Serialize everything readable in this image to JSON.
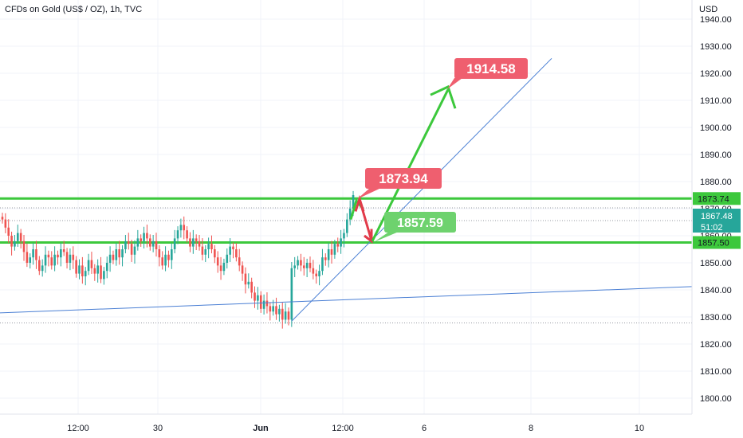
{
  "header": {
    "title": "CFDs on Gold (US$ / OZ), 1h, TVC"
  },
  "chart_data": {
    "type": "candlestick",
    "currency_label": "USD",
    "ylim": [
      1793,
      1942
    ],
    "y_ticks": [
      1800,
      1810,
      1820,
      1830,
      1840,
      1850,
      1860,
      1870,
      1880,
      1890,
      1900,
      1910,
      1920,
      1930,
      1940
    ],
    "y_tick_labels": [
      "1800.00",
      "1810.00",
      "1820.00",
      "1830.00",
      "1840.00",
      "1850.00",
      "1860.00",
      "1870.00",
      "1880.00",
      "1890.00",
      "1900.00",
      "1910.00",
      "1920.00",
      "1930.00",
      "1940.00"
    ],
    "x_tick_labels": [
      "12:00",
      "30",
      "Jun",
      "12:00",
      "6",
      "8",
      "10"
    ],
    "horizontal_levels": [
      {
        "price": 1873.74,
        "label": "1873.74",
        "color": "#3cc83c"
      },
      {
        "price": 1857.5,
        "label": "1857.50",
        "color": "#3cc83c"
      }
    ],
    "dotted_levels": [
      1870.3,
      1865.6,
      1827.8
    ],
    "current_price": {
      "label": "1867.48",
      "countdown": "51:02",
      "color": "#26a69a"
    },
    "annotations": [
      {
        "text": "1914.58",
        "color": "#ef5f6f"
      },
      {
        "text": "1873.94",
        "color": "#ef5f6f"
      },
      {
        "text": "1857.59",
        "color": "#6ed26e"
      }
    ],
    "colors": {
      "up": "#26a69a",
      "down": "#ef5350",
      "trend": "#4a7fd4",
      "arrow_up": "#3cc83c",
      "arrow_down": "#e23b4a"
    },
    "candles_close": [
      1866,
      1863,
      1860,
      1856,
      1858,
      1861,
      1858,
      1854,
      1850,
      1852,
      1855,
      1851,
      1847,
      1849,
      1853,
      1852,
      1849,
      1853,
      1852,
      1855,
      1854,
      1850,
      1853,
      1851,
      1846,
      1849,
      1845,
      1847,
      1851,
      1848,
      1846,
      1849,
      1844,
      1847,
      1850,
      1853,
      1851,
      1855,
      1852,
      1855,
      1858,
      1857,
      1853,
      1856,
      1859,
      1858,
      1861,
      1859,
      1856,
      1858,
      1855,
      1852,
      1849,
      1853,
      1851,
      1855,
      1859,
      1862,
      1864,
      1862,
      1859,
      1856,
      1859,
      1858,
      1856,
      1853,
      1855,
      1857,
      1855,
      1852,
      1849,
      1847,
      1850,
      1853,
      1856,
      1855,
      1852,
      1849,
      1846,
      1842,
      1843,
      1839,
      1836,
      1838,
      1833,
      1836,
      1834,
      1832,
      1834,
      1831,
      1833,
      1829,
      1832,
      1829,
      1848,
      1849,
      1851,
      1849,
      1848,
      1850,
      1848,
      1846,
      1845,
      1847,
      1852,
      1851,
      1855,
      1853,
      1857,
      1856,
      1859,
      1861,
      1866,
      1870,
      1875
    ]
  }
}
